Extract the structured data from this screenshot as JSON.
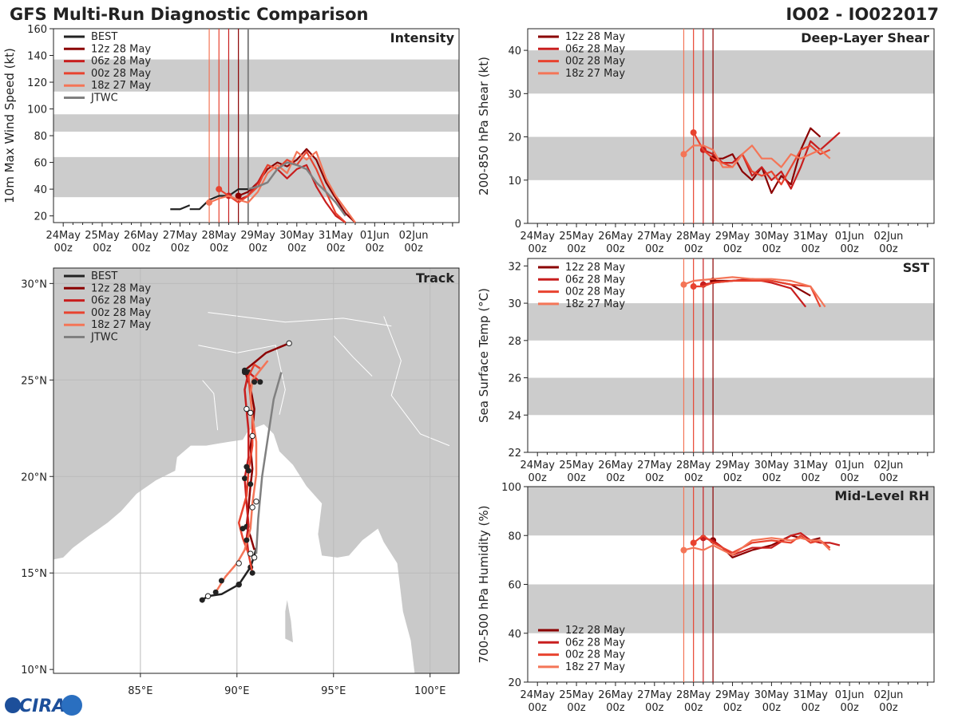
{
  "header": {
    "left": "GFS Multi-Run Diagnostic Comparison",
    "right": "IO02 - IO022017"
  },
  "logo": {
    "text": "CIRA"
  },
  "colors": {
    "best": "#222222",
    "jtwc": "#808080",
    "run12z": "#8b0000",
    "run06z": "#c81e1e",
    "run00z": "#e8432f",
    "run18z": "#f47557",
    "band": "#cccccc",
    "land": "#c9c9c9",
    "sea": "#ffffff"
  },
  "legend": [
    {
      "key": "best",
      "label": "BEST"
    },
    {
      "key": "run12z",
      "label": "12z 28 May"
    },
    {
      "key": "run06z",
      "label": "06z 28 May"
    },
    {
      "key": "run00z",
      "label": "00z 28 May"
    },
    {
      "key": "run18z",
      "label": "18z 27 May"
    },
    {
      "key": "jtwc",
      "label": "JTWC"
    }
  ],
  "time_ticks": [
    {
      "day": "24May",
      "hour": "00z",
      "t": 0
    },
    {
      "day": "25May",
      "hour": "00z",
      "t": 24
    },
    {
      "day": "26May",
      "hour": "00z",
      "t": 48
    },
    {
      "day": "27May",
      "hour": "00z",
      "t": 72
    },
    {
      "day": "28May",
      "hour": "00z",
      "t": 96
    },
    {
      "day": "29May",
      "hour": "00z",
      "t": 120
    },
    {
      "day": "30May",
      "hour": "00z",
      "t": 144
    },
    {
      "day": "31May",
      "hour": "00z",
      "t": 168
    },
    {
      "day": "01Jun",
      "hour": "00z",
      "t": 192
    },
    {
      "day": "02Jun",
      "hour": "00z",
      "t": 216
    }
  ],
  "init_times": [
    {
      "key": "run18z",
      "t": 90
    },
    {
      "key": "run00z",
      "t": 96
    },
    {
      "key": "run06z",
      "t": 102
    },
    {
      "key": "run12z",
      "t": 108
    },
    {
      "key": "jtwc",
      "t": 114
    }
  ],
  "chart_data": [
    {
      "id": "intensity",
      "type": "line",
      "title": "Intensity",
      "ylabel": "10m Max Wind Speed (kt)",
      "ylim": [
        15,
        160
      ],
      "yticks": [
        20,
        40,
        60,
        80,
        100,
        120,
        140,
        160
      ],
      "xlim": [
        -6,
        244
      ],
      "bands": [
        [
          34,
          64
        ],
        [
          83,
          96
        ],
        [
          113,
          137
        ]
      ],
      "series": [
        {
          "key": "best",
          "x": [
            6,
            12,
            18,
            24,
            30,
            36,
            42,
            48,
            54,
            60,
            66,
            72,
            78,
            84,
            90,
            96,
            102,
            108,
            114
          ],
          "y": [
            25,
            25,
            25,
            25,
            25,
            25,
            25,
            25,
            25,
            25,
            25,
            25,
            25,
            25,
            32,
            35,
            35,
            40,
            40
          ],
          "xstart": 78
        },
        {
          "key": "run12z",
          "x": [
            108,
            114,
            120,
            126,
            132,
            138,
            144,
            150,
            156,
            162,
            168,
            174,
            180
          ],
          "y": [
            35,
            38,
            45,
            55,
            60,
            57,
            62,
            70,
            62,
            45,
            33,
            22,
            15
          ]
        },
        {
          "key": "run06z",
          "x": [
            102,
            108,
            114,
            120,
            126,
            132,
            138,
            144,
            150,
            156,
            162,
            168,
            174
          ],
          "y": [
            35,
            32,
            35,
            45,
            58,
            55,
            48,
            55,
            58,
            42,
            30,
            20,
            15
          ]
        },
        {
          "key": "run00z",
          "x": [
            96,
            102,
            108,
            114,
            120,
            126,
            132,
            138,
            144,
            150,
            156,
            162,
            168,
            174
          ],
          "y": [
            40,
            35,
            30,
            35,
            42,
            58,
            55,
            62,
            58,
            68,
            55,
            38,
            22,
            15
          ]
        },
        {
          "key": "run18z",
          "x": [
            90,
            96,
            102,
            108,
            114,
            120,
            126,
            132,
            138,
            144,
            150,
            156,
            162,
            168,
            174,
            180
          ],
          "y": [
            30,
            33,
            35,
            32,
            30,
            38,
            52,
            58,
            52,
            68,
            62,
            68,
            48,
            35,
            25,
            15
          ]
        },
        {
          "key": "jtwc",
          "x": [
            114,
            120,
            126,
            132,
            138,
            144,
            150,
            156,
            162,
            168,
            174
          ],
          "y": [
            40,
            42,
            45,
            55,
            60,
            58,
            55,
            45,
            38,
            30,
            20
          ]
        }
      ]
    },
    {
      "id": "shear",
      "type": "line",
      "title": "Deep-Layer Shear",
      "ylabel": "200-850 hPa Shear (kt)",
      "ylim": [
        0,
        45
      ],
      "yticks": [
        0,
        10,
        20,
        30,
        40
      ],
      "xlim": [
        -6,
        244
      ],
      "bands": [
        [
          10,
          20
        ],
        [
          30,
          40
        ]
      ],
      "series": [
        {
          "key": "run12z",
          "x": [
            108,
            114,
            120,
            126,
            132,
            138,
            144,
            150,
            156,
            162,
            168,
            174
          ],
          "y": [
            15,
            15,
            16,
            12,
            10,
            13,
            7,
            11,
            9,
            17,
            22,
            20
          ]
        },
        {
          "key": "run06z",
          "x": [
            102,
            108,
            114,
            120,
            126,
            132,
            138,
            144,
            150,
            156,
            162,
            168,
            174,
            180,
            186
          ],
          "y": [
            17,
            16,
            14,
            14,
            16,
            11,
            13,
            10,
            12,
            8,
            13,
            19,
            17,
            19,
            21
          ]
        },
        {
          "key": "run00z",
          "x": [
            96,
            102,
            108,
            114,
            120,
            126,
            132,
            138,
            144,
            150,
            156,
            162,
            168,
            174,
            180
          ],
          "y": [
            21,
            17,
            15,
            14,
            13,
            16,
            12,
            11,
            12,
            9,
            13,
            17,
            18,
            16,
            17
          ]
        },
        {
          "key": "run18z",
          "x": [
            90,
            96,
            102,
            108,
            114,
            120,
            126,
            132,
            138,
            144,
            150,
            156,
            162,
            168,
            174,
            180
          ],
          "y": [
            16,
            18,
            18,
            17,
            13,
            13,
            16,
            18,
            15,
            15,
            13,
            16,
            15,
            16,
            17,
            15
          ]
        }
      ]
    },
    {
      "id": "sst",
      "type": "line",
      "title": "SST",
      "ylabel": "Sea Surface Temp (°C)",
      "ylim": [
        22,
        32.4
      ],
      "yticks": [
        22,
        24,
        26,
        28,
        30,
        32
      ],
      "xlim": [
        -6,
        244
      ],
      "bands": [
        [
          24,
          26
        ],
        [
          28,
          30
        ]
      ],
      "series": [
        {
          "key": "run12z",
          "x": [
            108,
            120,
            132,
            144,
            156,
            168
          ],
          "y": [
            31.2,
            31.2,
            31.3,
            31.2,
            31.0,
            30.4
          ]
        },
        {
          "key": "run06z",
          "x": [
            102,
            108,
            120,
            132,
            144,
            156,
            165
          ],
          "y": [
            31.0,
            31.1,
            31.2,
            31.3,
            31.1,
            30.8,
            29.8
          ]
        },
        {
          "key": "run00z",
          "x": [
            96,
            102,
            108,
            120,
            132,
            144,
            156,
            168,
            174
          ],
          "y": [
            30.9,
            30.9,
            31.1,
            31.2,
            31.2,
            31.2,
            31.0,
            30.9,
            29.8
          ]
        },
        {
          "key": "run18z",
          "x": [
            90,
            96,
            108,
            120,
            132,
            144,
            156,
            168,
            177
          ],
          "y": [
            31.0,
            31.2,
            31.3,
            31.4,
            31.3,
            31.3,
            31.2,
            30.9,
            29.8
          ]
        }
      ]
    },
    {
      "id": "rh",
      "type": "line",
      "title": "Mid-Level RH",
      "ylabel": "700-500 hPa Humidity (%)",
      "ylim": [
        20,
        100
      ],
      "yticks": [
        20,
        40,
        60,
        80,
        100
      ],
      "xlim": [
        -6,
        244
      ],
      "bands": [
        [
          40,
          60
        ],
        [
          80,
          100
        ]
      ],
      "series": [
        {
          "key": "run12z",
          "x": [
            108,
            114,
            120,
            132,
            144,
            156,
            162,
            168,
            174
          ],
          "y": [
            78,
            75,
            71,
            74,
            76,
            80,
            79,
            78,
            79
          ]
        },
        {
          "key": "run06z",
          "x": [
            102,
            108,
            114,
            120,
            132,
            144,
            156,
            162,
            168,
            174,
            180,
            186
          ],
          "y": [
            79,
            78,
            75,
            72,
            75,
            75,
            80,
            81,
            78,
            77,
            77,
            76
          ]
        },
        {
          "key": "run00z",
          "x": [
            96,
            102,
            108,
            114,
            120,
            132,
            144,
            156,
            162,
            168,
            174,
            180
          ],
          "y": [
            77,
            80,
            77,
            75,
            73,
            77,
            78,
            77,
            80,
            77,
            78,
            75
          ]
        },
        {
          "key": "run18z",
          "x": [
            90,
            96,
            102,
            108,
            114,
            120,
            132,
            144,
            156,
            162,
            168,
            174,
            180
          ],
          "y": [
            74,
            75,
            74,
            76,
            74,
            72,
            78,
            79,
            78,
            79,
            78,
            78,
            74
          ]
        }
      ]
    },
    {
      "id": "track",
      "type": "scatter",
      "title": "Track",
      "xlim": [
        80.5,
        101.5
      ],
      "ylim": [
        9.8,
        30.8
      ],
      "xticks": [
        {
          "v": 85,
          "label": "85°E"
        },
        {
          "v": 90,
          "label": "90°E"
        },
        {
          "v": 95,
          "label": "95°E"
        },
        {
          "v": 100,
          "label": "100°E"
        }
      ],
      "yticks": [
        {
          "v": 10,
          "label": "10°N"
        },
        {
          "v": 15,
          "label": "15°N"
        },
        {
          "v": 20,
          "label": "20°N"
        },
        {
          "v": 25,
          "label": "25°N"
        },
        {
          "v": 30,
          "label": "30°N"
        }
      ],
      "gridlines": [
        85,
        90,
        95,
        100,
        15,
        20,
        25,
        30
      ],
      "tracks": [
        {
          "key": "best",
          "lon": [
            88.2,
            88.5,
            89.2,
            90.1,
            90.7,
            90.9,
            91.0
          ],
          "lat": [
            13.6,
            13.8,
            13.9,
            14.4,
            15.3,
            15.9,
            16.3
          ],
          "filled": [
            0,
            1,
            4
          ],
          "open": [
            1,
            3
          ]
        },
        {
          "key": "jtwc",
          "lon": [
            91.0,
            91.1,
            91.3,
            91.6,
            91.9,
            92.3
          ],
          "lat": [
            16.0,
            17.8,
            20.0,
            22.0,
            24.0,
            25.4
          ],
          "filled": [],
          "open": []
        },
        {
          "key": "run12z",
          "lon": [
            90.9,
            90.7,
            90.5,
            90.6,
            90.7,
            90.8,
            90.7,
            90.8,
            90.9,
            90.7,
            90.4,
            90.9,
            91.5,
            92.7
          ],
          "lat": [
            16.2,
            16.9,
            17.4,
            18.4,
            19.5,
            20.4,
            21.5,
            22.3,
            23.5,
            24.6,
            25.5,
            25.9,
            26.4,
            26.9
          ],
          "filled": [
            2,
            10
          ],
          "open": [
            13
          ]
        },
        {
          "key": "run06z",
          "lon": [
            90.6,
            90.5,
            90.6,
            90.5,
            90.4,
            90.6,
            90.6,
            90.5,
            90.4,
            90.6,
            91.2
          ],
          "lat": [
            16.0,
            16.8,
            17.5,
            18.6,
            19.9,
            21.0,
            22.4,
            23.4,
            24.5,
            25.4,
            24.9
          ],
          "filled": [
            4,
            9,
            10
          ],
          "open": []
        },
        {
          "key": "run00z",
          "lon": [
            90.8,
            90.6,
            90.3,
            90.1,
            90.5,
            90.6,
            90.8,
            90.8,
            90.7,
            90.6,
            90.9,
            91.2
          ],
          "lat": [
            15.0,
            16.0,
            16.8,
            17.6,
            19.0,
            20.3,
            21.6,
            23.1,
            24.1,
            25.2,
            25.8,
            25.6
          ],
          "filled": [
            0,
            5
          ],
          "open": []
        },
        {
          "key": "run18z",
          "lon": [
            88.9,
            89.4,
            90.0,
            90.4,
            90.7,
            90.8,
            91.0,
            91.0,
            90.8,
            90.7,
            90.8,
            91.2,
            91.6
          ],
          "lat": [
            14.0,
            14.8,
            15.5,
            16.2,
            17.3,
            18.6,
            20.1,
            21.8,
            23.1,
            24.2,
            25.0,
            25.5,
            26.0
          ],
          "filled": [
            0
          ],
          "open": []
        }
      ],
      "open_points": [
        [
          90.9,
          15.8
        ],
        [
          90.7,
          16.0
        ],
        [
          90.8,
          18.4
        ],
        [
          91.0,
          18.7
        ],
        [
          90.8,
          22.1
        ],
        [
          90.5,
          23.5
        ],
        [
          90.7,
          23.3
        ],
        [
          90.1,
          15.5
        ]
      ],
      "filled_points": [
        [
          90.3,
          17.3
        ],
        [
          90.5,
          16.7
        ],
        [
          90.7,
          19.6
        ],
        [
          90.5,
          20.5
        ],
        [
          90.9,
          24.9
        ],
        [
          90.4,
          25.4
        ],
        [
          90.1,
          14.4
        ],
        [
          89.2,
          14.6
        ]
      ]
    }
  ]
}
